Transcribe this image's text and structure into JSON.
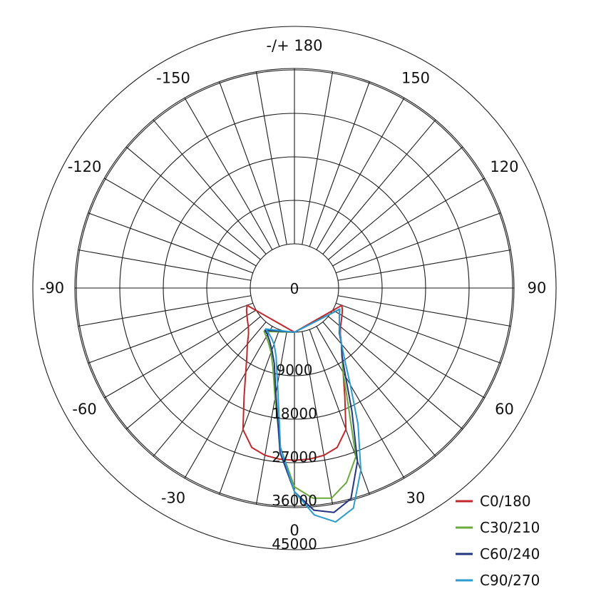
{
  "chart_data": {
    "type": "polar-line",
    "title": "",
    "angle_labels": [
      {
        "angle": 180,
        "text": "-/+ 180"
      },
      {
        "angle": 150,
        "text": "150"
      },
      {
        "angle": -150,
        "text": "-150"
      },
      {
        "angle": 120,
        "text": "120"
      },
      {
        "angle": -120,
        "text": "-120"
      },
      {
        "angle": 90,
        "text": "90"
      },
      {
        "angle": -90,
        "text": "-90"
      },
      {
        "angle": 60,
        "text": "60"
      },
      {
        "angle": -60,
        "text": "-60"
      },
      {
        "angle": 30,
        "text": "30"
      },
      {
        "angle": -30,
        "text": "-30"
      },
      {
        "angle": 0,
        "text": "0"
      }
    ],
    "angle_step": 10,
    "radial_ticks": [
      0,
      9000,
      18000,
      27000,
      36000,
      45000
    ],
    "radial_tick_labels": [
      "0",
      "9000",
      "18000",
      "27000",
      "36000",
      "45000"
    ],
    "radial_range": [
      0,
      45000
    ],
    "grid": true,
    "legend_position": "bottom-right",
    "series": [
      {
        "name": "C0/180",
        "color": "#c0282c",
        "angles": [
          0,
          5,
          10,
          15,
          20,
          25,
          30,
          35,
          40,
          45,
          50,
          55,
          60,
          65,
          70,
          -5,
          -10,
          -15,
          -20,
          -25,
          -30,
          -35,
          -40,
          -45,
          -50,
          -55,
          -60,
          -65,
          -70
        ],
        "values": [
          26500,
          26400,
          26000,
          25000,
          22000,
          15500,
          11000,
          8000,
          6000,
          4300,
          3300,
          2700,
          2200,
          1800,
          1300,
          26400,
          26000,
          25000,
          22000,
          15500,
          11000,
          8000,
          6000,
          4300,
          3300,
          2700,
          2200,
          1800,
          1300
        ]
      },
      {
        "name": "C30/210",
        "color": "#6aaa3a",
        "angles": [
          -35,
          -30,
          -25,
          -20,
          -15,
          -10,
          -5,
          0,
          5,
          10,
          15,
          20,
          25,
          30,
          35,
          40,
          45,
          50,
          55,
          60,
          65
        ],
        "values": [
          1800,
          2500,
          3500,
          5000,
          8000,
          14000,
          24000,
          32000,
          34500,
          35000,
          32500,
          28000,
          17000,
          11000,
          8000,
          6000,
          4000,
          3000,
          2200,
          1600,
          1200
        ]
      },
      {
        "name": "C60/240",
        "color": "#223580",
        "angles": [
          -35,
          -30,
          -25,
          -20,
          -15,
          -10,
          -5,
          0,
          5,
          10,
          15,
          20,
          25,
          30,
          35,
          40,
          45,
          50,
          55,
          60,
          65
        ],
        "values": [
          1500,
          2000,
          3000,
          4500,
          7000,
          13000,
          25000,
          33000,
          37000,
          38000,
          36000,
          29000,
          19000,
          12000,
          8000,
          6000,
          4000,
          3000,
          2200,
          1600,
          1200
        ]
      },
      {
        "name": "C90/270",
        "color": "#2b9bd0",
        "angles": [
          -35,
          -30,
          -25,
          -20,
          -15,
          -10,
          -5,
          0,
          5,
          10,
          15,
          20,
          25,
          30,
          35,
          40,
          45,
          50,
          55,
          60,
          65
        ],
        "values": [
          1200,
          1600,
          2200,
          3200,
          5500,
          11000,
          24000,
          33000,
          38000,
          40000,
          38000,
          31000,
          22000,
          14000,
          9000,
          6000,
          4200,
          3000,
          2200,
          1600,
          1200
        ]
      }
    ]
  }
}
